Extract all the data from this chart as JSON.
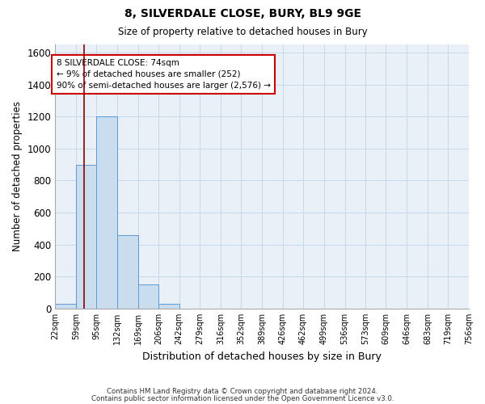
{
  "title1": "8, SILVERDALE CLOSE, BURY, BL9 9GE",
  "title2": "Size of property relative to detached houses in Bury",
  "xlabel": "Distribution of detached houses by size in Bury",
  "ylabel": "Number of detached properties",
  "annotation_line1": "8 SILVERDALE CLOSE: 74sqm",
  "annotation_line2": "← 9% of detached houses are smaller (252)",
  "annotation_line3": "90% of semi-detached houses are larger (2,576) →",
  "bin_edges": [
    22,
    59,
    95,
    132,
    169,
    206,
    242,
    279,
    316,
    352,
    389,
    426,
    462,
    499,
    536,
    573,
    609,
    646,
    683,
    719,
    756
  ],
  "bar_heights": [
    30,
    900,
    1200,
    460,
    150,
    30,
    0,
    0,
    0,
    0,
    0,
    0,
    0,
    0,
    0,
    0,
    0,
    0,
    0,
    0
  ],
  "bar_color": "#c9ddef",
  "bar_edge_color": "#5b9bd5",
  "vline_color": "#8b0000",
  "vline_x": 74,
  "ylim": [
    0,
    1650
  ],
  "yticks": [
    0,
    200,
    400,
    600,
    800,
    1000,
    1200,
    1400,
    1600
  ],
  "grid_color": "#c8d8e8",
  "background_color": "#eaf0f8",
  "footer_line1": "Contains HM Land Registry data © Crown copyright and database right 2024.",
  "footer_line2": "Contains public sector information licensed under the Open Government Licence v3.0."
}
